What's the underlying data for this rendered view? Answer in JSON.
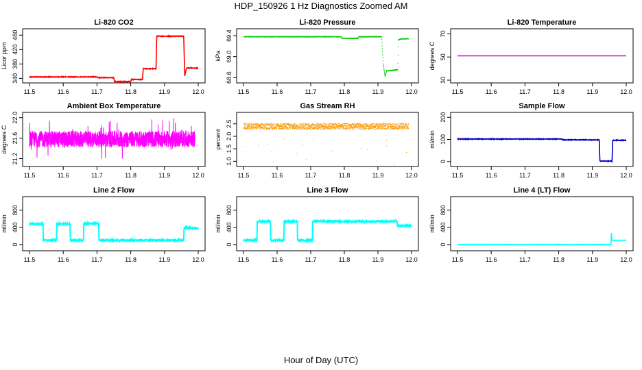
{
  "title": "HDP_150926  1 Hz Diagnostics Zoomed AM",
  "xlabel": "Hour of Day (UTC)",
  "chart_data": [
    {
      "type": "line",
      "title": "Li-820 CO2",
      "ylabel": "Licor ppm",
      "xlim": [
        11.5,
        12.0
      ],
      "xticks": [
        11.5,
        11.6,
        11.7,
        11.8,
        11.9,
        12.0
      ],
      "ylim": [
        335,
        470
      ],
      "yticks": [
        340,
        380,
        420,
        460
      ],
      "color": "#ff0000",
      "noise": 0.8,
      "style": "line",
      "x": [
        11.5,
        11.7,
        11.705,
        11.75,
        11.752,
        11.8,
        11.802,
        11.835,
        11.837,
        11.875,
        11.877,
        11.957,
        11.96,
        11.965,
        11.97,
        12.0
      ],
      "y": [
        344,
        344,
        342,
        342,
        331,
        331,
        337,
        337,
        367,
        367,
        457,
        457,
        347,
        368,
        369,
        368
      ]
    },
    {
      "type": "scatter",
      "title": "Li-820 Pressure",
      "ylabel": "kPa",
      "xlim": [
        11.5,
        12.0
      ],
      "xticks": [
        11.5,
        11.6,
        11.7,
        11.8,
        11.9,
        12.0
      ],
      "ylim": [
        68.55,
        69.48
      ],
      "yticks": [
        68.6,
        69.0,
        69.4
      ],
      "color": "#00cc00",
      "noise": 0.004,
      "style": "points",
      "x": [
        11.5,
        11.79,
        11.792,
        11.84,
        11.842,
        11.91,
        11.915,
        11.92,
        11.925,
        11.93,
        11.958,
        11.96,
        11.97,
        11.99
      ],
      "y": [
        69.38,
        69.38,
        69.35,
        69.35,
        69.38,
        69.38,
        68.85,
        68.62,
        68.73,
        68.73,
        68.75,
        69.32,
        69.34,
        69.34
      ]
    },
    {
      "type": "line",
      "title": "Li-820 Temperature",
      "ylabel": "degrees C",
      "xlim": [
        11.5,
        12.0
      ],
      "xticks": [
        11.5,
        11.6,
        11.7,
        11.8,
        11.9,
        12.0
      ],
      "ylim": [
        30,
        72
      ],
      "yticks": [
        30,
        50,
        70
      ],
      "color": "#cc00cc",
      "noise": 0,
      "style": "line",
      "x": [
        11.5,
        12.0
      ],
      "y": [
        51,
        51
      ]
    },
    {
      "type": "line",
      "title": "Ambient Box Temperature",
      "ylabel": "degrees C",
      "xlim": [
        11.5,
        12.0
      ],
      "xticks": [
        11.5,
        11.6,
        11.7,
        11.8,
        11.9,
        12.0
      ],
      "ylim": [
        21.1,
        22.05
      ],
      "yticks": [
        21.2,
        21.6,
        22.0
      ],
      "color": "#ff00ff",
      "noise": 0.16,
      "style": "noise",
      "x": [
        11.5,
        11.99
      ],
      "y": [
        21.58,
        21.58
      ]
    },
    {
      "type": "scatter",
      "title": "Gas Stream RH",
      "ylabel": "percent",
      "xlim": [
        11.5,
        12.0
      ],
      "xticks": [
        11.5,
        11.6,
        11.7,
        11.8,
        11.9,
        12.0
      ],
      "ylim": [
        0.9,
        2.85
      ],
      "yticks": [
        1.0,
        1.5,
        2.0,
        2.5
      ],
      "color": "#ff9900",
      "noise": 0.12,
      "style": "noisepoints",
      "x": [
        11.5,
        11.99
      ],
      "y": [
        2.4,
        2.4
      ]
    },
    {
      "type": "line",
      "title": "Sample Flow",
      "ylabel": "ml/min",
      "xlim": [
        11.5,
        12.0
      ],
      "xticks": [
        11.5,
        11.6,
        11.7,
        11.8,
        11.9,
        12.0
      ],
      "ylim": [
        -10,
        210
      ],
      "yticks": [
        0,
        100,
        200
      ],
      "color": "#0000cc",
      "noise": 1.2,
      "style": "line",
      "x": [
        11.5,
        11.81,
        11.812,
        11.92,
        11.922,
        11.958,
        11.96,
        12.0
      ],
      "y": [
        102,
        102,
        98,
        98,
        2,
        2,
        96,
        96
      ]
    },
    {
      "type": "line",
      "title": "Line 2 Flow",
      "ylabel": "ml/min",
      "xlim": [
        11.5,
        12.0
      ],
      "xticks": [
        11.5,
        11.6,
        11.7,
        11.8,
        11.9,
        12.0
      ],
      "ylim": [
        -80,
        1050
      ],
      "yticks": [
        0,
        400,
        800
      ],
      "color": "#00ffff",
      "noise": 12,
      "style": "line",
      "x": [
        11.5,
        11.54,
        11.541,
        11.58,
        11.581,
        11.62,
        11.621,
        11.66,
        11.661,
        11.705,
        11.706,
        11.957,
        11.958,
        12.0
      ],
      "y": [
        480,
        480,
        100,
        100,
        480,
        480,
        100,
        100,
        490,
        490,
        100,
        100,
        390,
        380
      ]
    },
    {
      "type": "line",
      "title": "Line 3 Flow",
      "ylabel": "ml/min",
      "xlim": [
        11.5,
        12.0
      ],
      "xticks": [
        11.5,
        11.6,
        11.7,
        11.8,
        11.9,
        12.0
      ],
      "ylim": [
        -80,
        1050
      ],
      "yticks": [
        0,
        400,
        800
      ],
      "color": "#00ffff",
      "noise": 14,
      "style": "line",
      "x": [
        11.5,
        11.54,
        11.541,
        11.58,
        11.581,
        11.62,
        11.621,
        11.66,
        11.661,
        11.705,
        11.706,
        11.957,
        11.958,
        12.0
      ],
      "y": [
        100,
        100,
        540,
        540,
        100,
        100,
        540,
        540,
        100,
        100,
        540,
        540,
        440,
        440
      ]
    },
    {
      "type": "line",
      "title": "Line 4 (LT) Flow",
      "ylabel": "ml/min",
      "xlim": [
        11.5,
        12.0
      ],
      "xticks": [
        11.5,
        11.6,
        11.7,
        11.8,
        11.9,
        12.0
      ],
      "ylim": [
        -80,
        1050
      ],
      "yticks": [
        0,
        400,
        800
      ],
      "color": "#00ffff",
      "noise": 3,
      "style": "line",
      "x": [
        11.5,
        11.955,
        11.956,
        11.958,
        11.96,
        12.0
      ],
      "y": [
        0,
        0,
        280,
        100,
        100,
        100
      ]
    }
  ]
}
